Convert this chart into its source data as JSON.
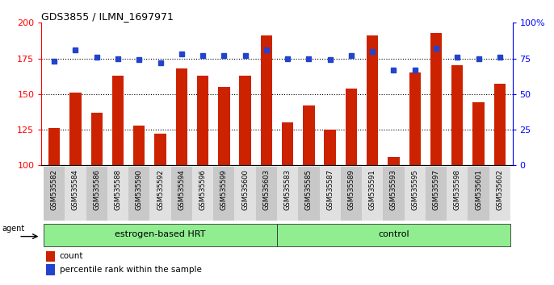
{
  "title": "GDS3855 / ILMN_1697971",
  "samples": [
    "GSM535582",
    "GSM535584",
    "GSM535586",
    "GSM535588",
    "GSM535590",
    "GSM535592",
    "GSM535594",
    "GSM535596",
    "GSM535599",
    "GSM535600",
    "GSM535603",
    "GSM535583",
    "GSM535585",
    "GSM535587",
    "GSM535589",
    "GSM535591",
    "GSM535593",
    "GSM535595",
    "GSM535597",
    "GSM535598",
    "GSM535601",
    "GSM535602"
  ],
  "bar_values": [
    126,
    151,
    137,
    163,
    128,
    122,
    168,
    163,
    155,
    163,
    191,
    130,
    142,
    125,
    154,
    191,
    106,
    165,
    193,
    170,
    144,
    157
  ],
  "dot_values": [
    173,
    181,
    176,
    175,
    174,
    172,
    178,
    177,
    177,
    177,
    181,
    175,
    175,
    174,
    177,
    180,
    167,
    167,
    182,
    176,
    175,
    176
  ],
  "groups": [
    {
      "label": "estrogen-based HRT",
      "start": 0,
      "end": 11
    },
    {
      "label": "control",
      "start": 11,
      "end": 22
    }
  ],
  "group_color": "#90EE90",
  "ylim_left": [
    100,
    200
  ],
  "ylim_right": [
    0,
    100
  ],
  "yticks_left": [
    100,
    125,
    150,
    175,
    200
  ],
  "yticks_right": [
    0,
    25,
    50,
    75,
    100
  ],
  "bar_color": "#CC2200",
  "dot_color": "#2244CC",
  "agent_label": "agent",
  "legend_count_label": "count",
  "legend_pct_label": "percentile rank within the sample",
  "gridline_vals": [
    125,
    150,
    175
  ]
}
